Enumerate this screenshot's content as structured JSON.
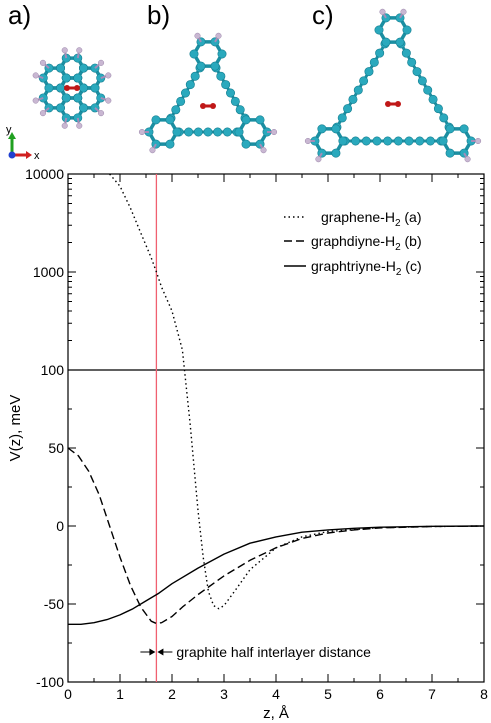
{
  "panels": {
    "labels": [
      "a)",
      "b)",
      "c)"
    ],
    "axes_icon": {
      "x": "x",
      "y": "y",
      "z": "z"
    }
  },
  "colors": {
    "carbon": "#2aa9bd",
    "carbon_dark": "#157d8f",
    "bond": "#1b8fa2",
    "hydrogen": "#c9b7d2",
    "h2_molecule": "#c01818",
    "marker_line": "#f06070",
    "curve": "#000000",
    "axis_x_arrow": "#d02020",
    "axis_y_arrow": "#20a020",
    "axis_z_arrow": "#2040d0"
  },
  "annotation": {
    "text": "graphite half interlayer distance",
    "z": 1.7
  },
  "chart_data": {
    "type": "line",
    "xlabel": "z,  Å",
    "ylabel": "V(z), meV",
    "xlim": [
      0,
      8
    ],
    "x_ticks": [
      "0",
      "1",
      "2",
      "3",
      "4",
      "5",
      "6",
      "7",
      "8"
    ],
    "y_tick_labels": [
      "10000",
      "1000",
      "100",
      "50",
      "0",
      "-50",
      "-100"
    ],
    "segments": [
      {
        "scale": "log",
        "range": [
          100,
          10000
        ]
      },
      {
        "scale": "linear",
        "range": [
          -100,
          100
        ]
      }
    ],
    "grid": false,
    "legend_position": "top-right",
    "series": [
      {
        "name": "graphene-H",
        "name_sub": "2",
        "name_tail": "(a)",
        "style": "dotted",
        "x": [
          0.8,
          1.0,
          1.2,
          1.4,
          1.6,
          1.7,
          1.8,
          2.0,
          2.2,
          2.35,
          2.5,
          2.6,
          2.7,
          2.8,
          2.9,
          3.0,
          3.2,
          3.5,
          4.0,
          4.5,
          5.0,
          6.0,
          7.0,
          8.0
        ],
        "y": [
          10000,
          7500,
          4500,
          2500,
          1400,
          1000,
          700,
          400,
          160,
          65,
          10,
          -20,
          -42,
          -51,
          -53,
          -51,
          -42,
          -28,
          -14,
          -7,
          -3.5,
          -1,
          -0.3,
          0
        ]
      },
      {
        "name": "graphdiyne-H",
        "name_sub": "2",
        "name_tail": "(b)",
        "style": "dashed",
        "x": [
          0,
          0.2,
          0.4,
          0.6,
          0.8,
          1.0,
          1.2,
          1.4,
          1.6,
          1.7,
          1.8,
          2.0,
          2.2,
          2.5,
          3.0,
          3.5,
          4.0,
          4.5,
          5.0,
          5.5,
          6.0,
          7.0,
          8.0
        ],
        "y": [
          50,
          45,
          35,
          20,
          0,
          -20,
          -38,
          -52,
          -61,
          -62.5,
          -62,
          -58,
          -52,
          -44,
          -32,
          -22,
          -14,
          -8,
          -4.5,
          -2.5,
          -1.2,
          -0.3,
          0
        ]
      },
      {
        "name": "graphtriyne-H",
        "name_sub": "2",
        "name_tail": "(c)",
        "style": "solid",
        "x": [
          0,
          0.25,
          0.5,
          0.75,
          1.0,
          1.25,
          1.5,
          1.75,
          2.0,
          2.5,
          3.0,
          3.5,
          4.0,
          4.5,
          5.0,
          5.5,
          6.0,
          7.0,
          8.0
        ],
        "y": [
          -63,
          -63,
          -62,
          -60,
          -57,
          -53,
          -48,
          -43,
          -37,
          -27,
          -18,
          -11,
          -7,
          -4,
          -2.5,
          -1.5,
          -0.8,
          -0.2,
          0
        ]
      }
    ]
  }
}
